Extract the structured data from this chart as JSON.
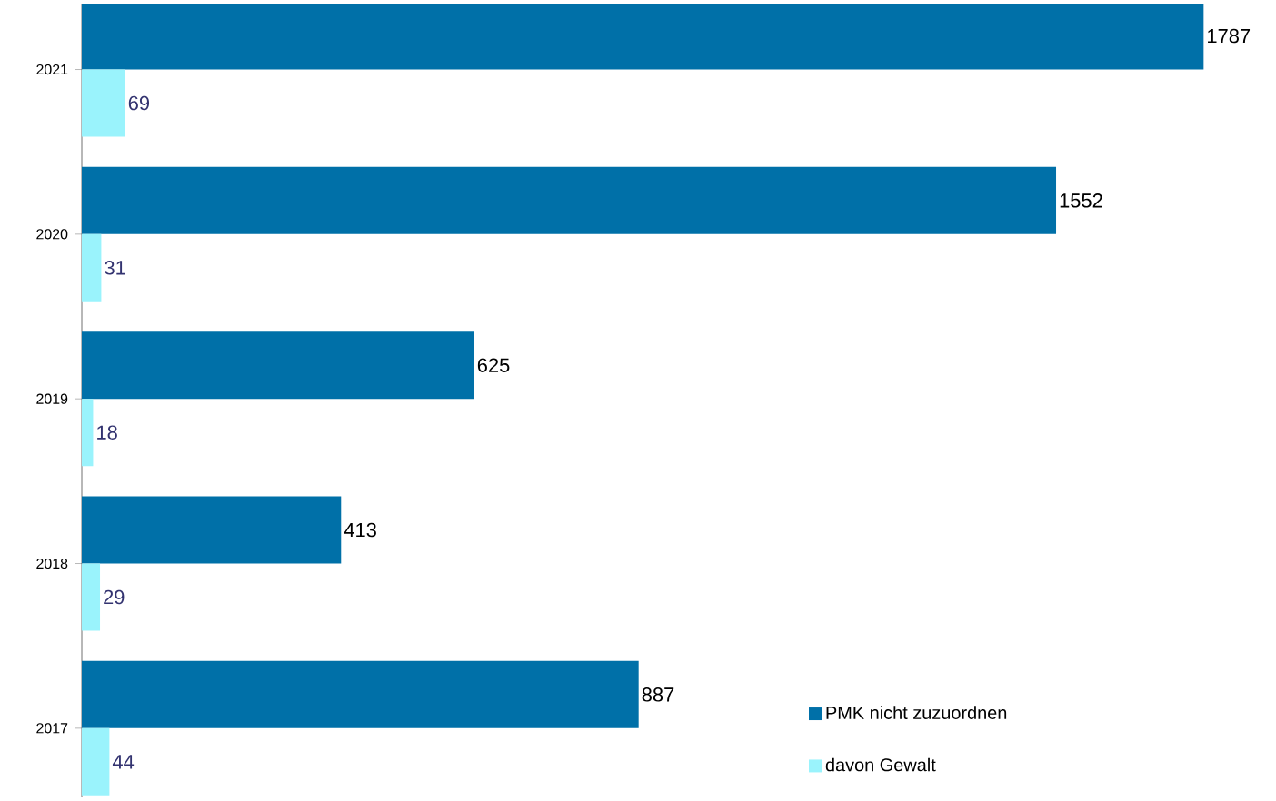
{
  "chart_data": {
    "type": "bar",
    "orientation": "horizontal",
    "categories": [
      "2021",
      "2020",
      "2019",
      "2018",
      "2017"
    ],
    "series": [
      {
        "name": "PMK nicht zuzuordnen",
        "color": "#0070a8",
        "values": [
          1787,
          1552,
          625,
          413,
          887
        ]
      },
      {
        "name": "davon Gewalt",
        "color": "#9af3fc",
        "values": [
          69,
          31,
          18,
          29,
          44
        ]
      }
    ],
    "data_labels": true,
    "legend": "bottom right"
  }
}
